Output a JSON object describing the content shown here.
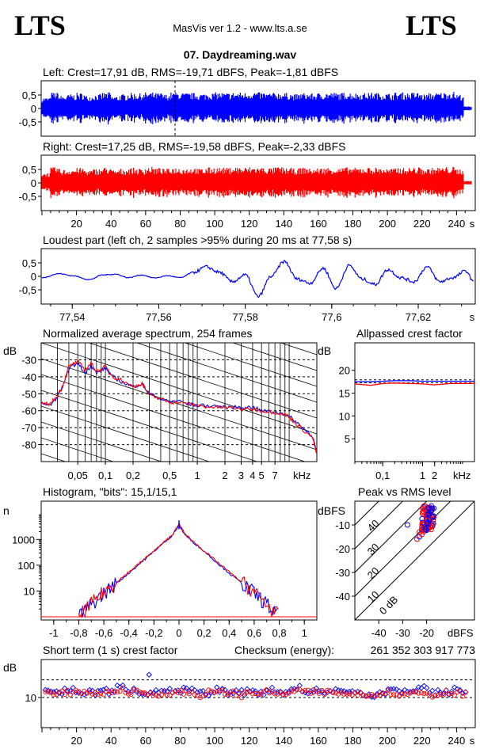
{
  "header": {
    "logo_left": "LTS",
    "logo_right": "LTS",
    "app_title": "MasVis ver 1.2 - www.lts.a.se",
    "file_name": "07. Daydreaming.wav"
  },
  "panels": {
    "left": {
      "title": "Left: Crest=17,91 dB, RMS=-19,71 dBFS, Peak=-1,81 dBFS"
    },
    "right": {
      "title": "Right: Crest=17,25 dB, RMS=-19,58 dBFS, Peak=-2,33 dBFS"
    },
    "loudest": {
      "title": "Loudest part (left  ch, 2 samples >95% during 20 ms at 77,58 s)"
    },
    "spectrum": {
      "title": "Normalized average spectrum, 254 frames",
      "ylabel": "dB",
      "xunit": "kHz"
    },
    "allpass": {
      "title": "Allpassed crest factor",
      "ylabel": "dB",
      "xunit": "kHz"
    },
    "histogram": {
      "title": "Histogram, \"bits\": 15,1/15,1",
      "ylabel": "n"
    },
    "pvr": {
      "title": "Peak vs RMS level",
      "ylabel": "dBFS",
      "xunit": "dBFS"
    },
    "shortterm": {
      "title": "Short term (1 s) crest factor",
      "ylabel": "dB"
    },
    "checksum": {
      "label": "Checksum (energy):",
      "value": "261 352 303 917 773"
    }
  },
  "colors": {
    "left": "#0000ff",
    "right": "#ff0000"
  },
  "chart_data": [
    {
      "id": "left-waveform",
      "type": "area",
      "x_ticks": [
        20,
        40,
        60,
        80,
        100,
        120,
        140,
        160,
        180,
        200,
        220,
        240
      ],
      "x_unit": "s",
      "xlim": [
        0,
        249
      ],
      "ylim": [
        -1,
        1
      ],
      "y_ticks": [
        0.5,
        0,
        -0.5
      ],
      "y_tick_labels": [
        "0,5",
        "0",
        "-0,5"
      ],
      "series": [
        {
          "values": [
            0.42,
            0.62,
            0.5,
            0.55,
            0.6,
            0.5,
            0.55,
            0.62,
            0.48,
            0.55,
            0.6,
            0.58,
            0.62,
            0.6,
            0.55,
            0.62,
            0.6,
            0.6,
            0.58,
            0.6,
            0.62,
            0.6,
            0.62,
            0.62,
            0.65,
            0.62,
            0.6,
            0.62,
            0.6,
            0.55,
            0.6,
            0.58,
            0.6,
            0.62,
            0.6,
            0.62,
            0.6,
            0.6,
            0.62,
            0.6,
            0.58,
            0.62,
            0.6,
            0.62,
            0.55,
            0.6,
            0.62,
            0.65,
            0.55,
            0.08
          ]
        }
      ],
      "marker_x": 77.58
    },
    {
      "id": "right-waveform",
      "type": "area",
      "xlim": [
        0,
        249
      ],
      "ylim": [
        -1,
        1
      ],
      "y_ticks": [
        0.5,
        0,
        -0.5
      ],
      "y_tick_labels": [
        "0,5",
        "0",
        "-0,5"
      ],
      "x_tick_labels": [
        "20",
        "40",
        "60",
        "80",
        "100",
        "120",
        "140",
        "160",
        "180",
        "200",
        "220",
        "240",
        "s"
      ],
      "series": [
        {
          "values": [
            0.4,
            0.6,
            0.52,
            0.55,
            0.58,
            0.5,
            0.55,
            0.6,
            0.5,
            0.55,
            0.58,
            0.55,
            0.62,
            0.58,
            0.55,
            0.6,
            0.58,
            0.6,
            0.55,
            0.6,
            0.6,
            0.58,
            0.62,
            0.6,
            0.62,
            0.6,
            0.58,
            0.62,
            0.58,
            0.55,
            0.6,
            0.55,
            0.58,
            0.6,
            0.58,
            0.6,
            0.58,
            0.6,
            0.6,
            0.58,
            0.55,
            0.6,
            0.58,
            0.6,
            0.55,
            0.58,
            0.6,
            0.62,
            0.55,
            0.08
          ]
        }
      ]
    },
    {
      "id": "loudest-part",
      "type": "line",
      "xlim": [
        77.533,
        77.633
      ],
      "ylim": [
        -0.9,
        0.9
      ],
      "x_tick_labels": [
        "77,54",
        "77,56",
        "77,58",
        "77,6",
        "77,62",
        "s"
      ],
      "y_tick_labels": [
        "0,5",
        "0",
        "-0,5"
      ],
      "series": [
        {
          "x": [
            77.533,
            77.537,
            77.54,
            77.544,
            77.547,
            77.55,
            77.553,
            77.556,
            77.559,
            77.562,
            77.565,
            77.568,
            77.571,
            77.574,
            77.577,
            77.58,
            77.583,
            77.586,
            77.589,
            77.592,
            77.595,
            77.598,
            77.601,
            77.604,
            77.607,
            77.61,
            77.613,
            77.616,
            77.619,
            77.622,
            77.625,
            77.628,
            77.631,
            77.633
          ],
          "y": [
            -0.05,
            0.1,
            0.02,
            -0.12,
            0.05,
            0.08,
            -0.05,
            0.05,
            -0.06,
            0.02,
            -0.05,
            0.15,
            0.35,
            0.15,
            -0.2,
            0.05,
            -0.75,
            0.0,
            0.55,
            -0.1,
            -0.25,
            0.3,
            -0.45,
            0.4,
            -0.1,
            -0.3,
            0.25,
            -0.05,
            -0.2,
            0.35,
            -0.2,
            -0.05,
            0.2,
            -0.25
          ]
        }
      ]
    },
    {
      "id": "avg-spectrum",
      "type": "line",
      "x_scale": "log",
      "x_tick_labels": [
        "0,05",
        "0,1",
        "0,2",
        "0,5",
        "1",
        "2",
        "3",
        "4",
        "5",
        "7"
      ],
      "x_unit": "kHz",
      "y_tick_labels": [
        "-30",
        "-40",
        "-50",
        "-60",
        "-70",
        "-80"
      ],
      "ylim": [
        -90,
        -20
      ],
      "series": [
        {
          "name": "left",
          "x": [
            0.02,
            0.025,
            0.03,
            0.035,
            0.04,
            0.05,
            0.06,
            0.07,
            0.08,
            0.1,
            0.12,
            0.15,
            0.2,
            0.25,
            0.3,
            0.4,
            0.5,
            0.6,
            0.8,
            1,
            1.5,
            2,
            3,
            4,
            5,
            7,
            9,
            11,
            14,
            18,
            20
          ],
          "y": [
            -55,
            -57,
            -52,
            -45,
            -35,
            -32,
            -38,
            -33,
            -38,
            -35,
            -40,
            -43,
            -46,
            -44,
            -50,
            -53,
            -55,
            -54,
            -56,
            -57,
            -57,
            -58,
            -58,
            -58,
            -60,
            -61,
            -62,
            -65,
            -70,
            -75,
            -85
          ]
        },
        {
          "name": "right",
          "x": [
            0.02,
            0.025,
            0.03,
            0.035,
            0.04,
            0.05,
            0.06,
            0.07,
            0.08,
            0.1,
            0.12,
            0.15,
            0.2,
            0.25,
            0.3,
            0.4,
            0.5,
            0.6,
            0.8,
            1,
            1.5,
            2,
            3,
            4,
            5,
            7,
            9,
            11,
            14,
            18,
            20
          ],
          "y": [
            -56,
            -56,
            -51,
            -44,
            -34,
            -31,
            -36,
            -32,
            -37,
            -34,
            -40,
            -42,
            -46,
            -44,
            -51,
            -53,
            -55,
            -55,
            -56,
            -57,
            -58,
            -58,
            -59,
            -59,
            -60,
            -61,
            -62,
            -66,
            -71,
            -76,
            -86
          ]
        }
      ]
    },
    {
      "id": "allpassed-crest",
      "type": "line",
      "x_scale": "log",
      "x_tick_labels": [
        "0,1",
        "1",
        "2"
      ],
      "x_unit": "kHz",
      "y_tick_labels": [
        "20",
        "15",
        "10",
        "5"
      ],
      "ylim": [
        0,
        25
      ],
      "series": [
        {
          "name": "left",
          "x": [
            0.02,
            0.05,
            0.1,
            0.2,
            0.5,
            1,
            2,
            5,
            20
          ],
          "y": [
            17.5,
            17.5,
            17.6,
            17.7,
            17.7,
            17.6,
            17.6,
            17.6,
            17.6
          ]
        },
        {
          "name": "right",
          "x": [
            0.02,
            0.05,
            0.1,
            0.2,
            0.5,
            1,
            2,
            5,
            20
          ],
          "y": [
            17.0,
            16.7,
            17.1,
            17.2,
            17.1,
            17.0,
            16.8,
            17.1,
            17.1
          ]
        }
      ],
      "reference_lines": [
        17.9,
        17.25
      ]
    },
    {
      "id": "histogram",
      "type": "line",
      "y_scale": "log",
      "x_tick_labels": [
        "-1",
        "-0,8",
        "-0,6",
        "-0,4",
        "-0,2",
        "0",
        "0,2",
        "0,4",
        "0,6",
        "0,8",
        "1"
      ],
      "y_tick_labels": [
        "1000",
        "100",
        "10"
      ],
      "xlim": [
        -1.1,
        1.1
      ],
      "series": [
        {
          "name": "left",
          "x": [
            -0.8,
            -0.7,
            -0.6,
            -0.5,
            -0.4,
            -0.3,
            -0.2,
            -0.1,
            -0.05,
            0,
            0.05,
            0.1,
            0.2,
            0.3,
            0.4,
            0.5,
            0.6,
            0.7,
            0.8
          ],
          "y": [
            1,
            3,
            8,
            20,
            50,
            130,
            350,
            900,
            1500,
            3500,
            1500,
            900,
            350,
            130,
            50,
            20,
            8,
            3,
            1
          ]
        },
        {
          "name": "right",
          "x": [
            -0.8,
            -0.7,
            -0.6,
            -0.5,
            -0.4,
            -0.3,
            -0.2,
            -0.1,
            -0.05,
            0,
            0.05,
            0.1,
            0.2,
            0.3,
            0.4,
            0.5,
            0.6,
            0.7,
            0.8
          ],
          "y": [
            1,
            3,
            9,
            22,
            55,
            140,
            360,
            950,
            1600,
            4000,
            1600,
            950,
            360,
            140,
            55,
            22,
            9,
            3,
            1
          ]
        }
      ]
    },
    {
      "id": "peak-vs-rms",
      "type": "scatter",
      "x_tick_labels": [
        "-40",
        "-30",
        "-20"
      ],
      "y_tick_labels": [
        "-10",
        "-20",
        "-30",
        "-40"
      ],
      "xlim": [
        -50,
        0
      ],
      "ylim": [
        -50,
        0
      ],
      "diagonal_labels": [
        "40",
        "30",
        "20",
        "10",
        "0 dB"
      ],
      "series": [
        {
          "name": "left",
          "x": [
            -28,
            -23,
            -22,
            -21,
            -20,
            -19,
            -19,
            -18,
            -18,
            -17,
            -20,
            -21,
            -19,
            -18
          ],
          "y": [
            -10,
            -15,
            -12,
            -10,
            -8,
            -6,
            -5,
            -4,
            -3,
            -3,
            -9,
            -11,
            -7,
            -2
          ]
        },
        {
          "name": "right",
          "x": [
            -24,
            -23,
            -22,
            -21,
            -20,
            -20,
            -19,
            -19,
            -18,
            -18,
            -21,
            -22,
            -20,
            -19
          ],
          "y": [
            -16,
            -13,
            -11,
            -9,
            -7,
            -10,
            -5,
            -8,
            -4,
            -6,
            -12,
            -14,
            -6,
            -3
          ]
        }
      ]
    },
    {
      "id": "short-term-crest",
      "type": "scatter",
      "x_tick_labels": [
        "20",
        "40",
        "60",
        "80",
        "100",
        "120",
        "140",
        "160",
        "180",
        "200",
        "220",
        "240",
        "s"
      ],
      "y_tick_labels": [
        "10"
      ],
      "xlim": [
        0,
        249
      ],
      "ylim": [
        0,
        30
      ],
      "series": [
        {
          "name": "left",
          "values": [
            13,
            12,
            13,
            12,
            12,
            13,
            12,
            14,
            13,
            12,
            12,
            13,
            12,
            13,
            12,
            11,
            13,
            12,
            12,
            13,
            12,
            13,
            12,
            14,
            12,
            13,
            12,
            13,
            12,
            12,
            11,
            12,
            13,
            12,
            13,
            14,
            12,
            12,
            13,
            12
          ]
        },
        {
          "name": "right",
          "values": [
            12,
            12,
            12,
            12,
            11,
            12,
            12,
            13,
            12,
            12,
            11,
            12,
            12,
            12,
            11,
            12,
            12,
            12,
            11,
            12,
            12,
            12,
            11,
            13,
            12,
            12,
            12,
            12,
            11,
            12,
            11,
            12,
            12,
            11,
            12,
            12,
            11,
            12,
            12,
            11
          ]
        }
      ],
      "outlier": {
        "x": 62,
        "y": 19
      }
    }
  ]
}
